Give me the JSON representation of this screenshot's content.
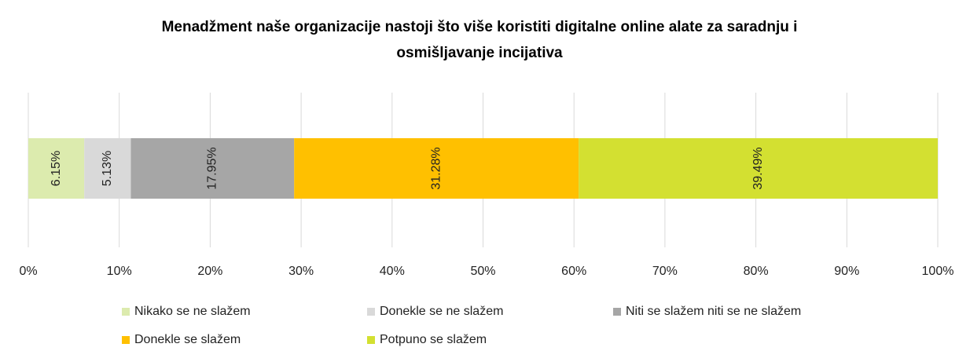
{
  "chart_data": {
    "type": "bar",
    "orientation": "horizontal",
    "stacked": true,
    "title": "Menadžment naše organizacije nastoji što više koristiti digitalne online alate za saradnju i osmišljavanje incijativa",
    "series": [
      {
        "name": "Nikako se ne slažem",
        "color": "#dcebae",
        "values": [
          6.15
        ],
        "value_labels": [
          "6.15%"
        ]
      },
      {
        "name": "Donekle se ne slažem",
        "color": "#d9d9d9",
        "values": [
          5.13
        ],
        "value_labels": [
          "5.13%"
        ]
      },
      {
        "name": "Niti se slažem niti se ne slažem",
        "color": "#a6a6a6",
        "values": [
          17.95
        ],
        "value_labels": [
          "17.95%"
        ]
      },
      {
        "name": "Donekle se slažem",
        "color": "#ffc000",
        "values": [
          31.28
        ],
        "value_labels": [
          "31.28%"
        ]
      },
      {
        "name": "Potpuno se slažem",
        "color": "#d3e031",
        "values": [
          39.49
        ],
        "value_labels": [
          "39.49%"
        ]
      }
    ],
    "xlim": [
      0,
      100
    ],
    "xticks": [
      {
        "value": 0,
        "label": "0%"
      },
      {
        "value": 10,
        "label": "10%"
      },
      {
        "value": 20,
        "label": "20%"
      },
      {
        "value": 30,
        "label": "30%"
      },
      {
        "value": 40,
        "label": "40%"
      },
      {
        "value": 50,
        "label": "50%"
      },
      {
        "value": 60,
        "label": "60%"
      },
      {
        "value": 70,
        "label": "70%"
      },
      {
        "value": 80,
        "label": "80%"
      },
      {
        "value": 90,
        "label": "90%"
      },
      {
        "value": 100,
        "label": "100%"
      }
    ],
    "grid": true,
    "legend": "bottom"
  }
}
